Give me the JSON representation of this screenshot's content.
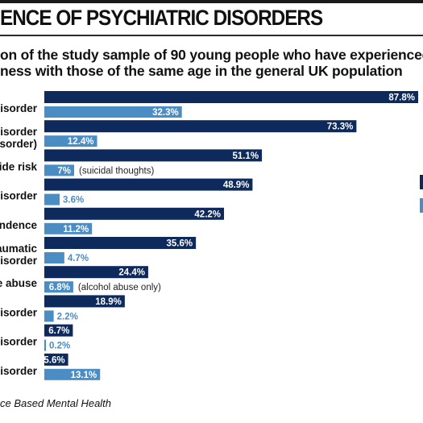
{
  "header": {
    "title": "ENCE OF PSYCHIATRIC DISORDERS",
    "subtitle_line1": "on of the study sample of 90 young people who have experienced",
    "subtitle_line2": "ness with those of the same age in the general UK population"
  },
  "source": "ce Based Mental Health",
  "colors": {
    "dark": "#0e2a5c",
    "light": "#4a8cc4",
    "bar_text": "#ffffff",
    "note_text": "#222222"
  },
  "legend": [
    {
      "color": "#0e2a5c"
    },
    {
      "color": "#4a8cc4"
    }
  ],
  "chart_data": {
    "type": "bar",
    "orientation": "horizontal",
    "value_unit": "%",
    "xlim": [
      0,
      87.8
    ],
    "categories": [
      {
        "label": [
          "t disorder"
        ],
        "dark": 87.8,
        "dark_label": "87.8%",
        "light": 32.3,
        "light_label": "32.3%",
        "note": ""
      },
      {
        "label": [
          "l disorder",
          "disorder)"
        ],
        "dark": 73.3,
        "dark_label": "73.3%",
        "light": 12.4,
        "light_label": "12.4%",
        "note": ""
      },
      {
        "label": [
          "icide risk"
        ],
        "dark": 51.1,
        "dark_label": "51.1%",
        "light": 7,
        "light_label": "7%",
        "note": "(suicidal thoughts)"
      },
      {
        "label": [
          "y disorder"
        ],
        "dark": 48.9,
        "dark_label": "48.9%",
        "light": 3.6,
        "light_label": "3.6%",
        "note": ""
      },
      {
        "label": [
          "pendence"
        ],
        "dark": 42.2,
        "dark_label": "42.2%",
        "light": 11.2,
        "light_label": "11.2%",
        "note": ""
      },
      {
        "label": [
          "traumatic",
          "s disorder"
        ],
        "dark": 35.6,
        "dark_label": "35.6%",
        "light": 4.7,
        "light_label": "4.7%",
        "note": ""
      },
      {
        "label": [
          "nce abuse"
        ],
        "dark": 24.4,
        "dark_label": "24.4%",
        "light": 6.8,
        "light_label": "6.8%",
        "note": "(alcohol abuse only)"
      },
      {
        "label": [
          "l disorder"
        ],
        "dark": 18.9,
        "dark_label": "18.9%",
        "light": 2.2,
        "light_label": "2.2%",
        "note": ""
      },
      {
        "label": [
          "c disorder"
        ],
        "dark": 6.7,
        "dark_label": "6.7%",
        "light": 0.2,
        "light_label": "0.2%",
        "note": ""
      },
      {
        "label": [
          "g disorder"
        ],
        "dark": 5.6,
        "dark_label": "5.6%",
        "light": 13.1,
        "light_label": "13.1%",
        "note": ""
      }
    ]
  }
}
